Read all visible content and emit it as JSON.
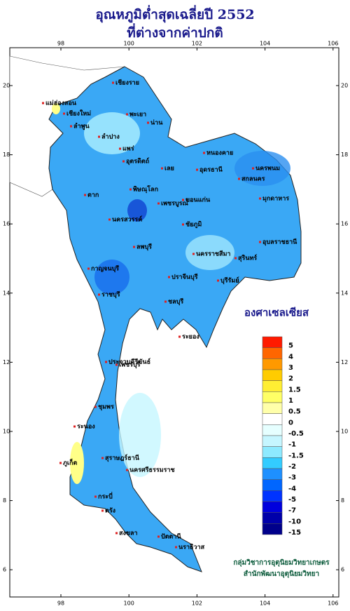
{
  "map": {
    "title": [
      "อุณหภูมิต่ำสุดเฉลี่ยปี  2552",
      "ที่ต่างจากค่าปกติ"
    ],
    "lon_ticks": [
      98,
      100,
      102,
      104,
      106
    ],
    "lat_ticks": [
      6,
      8,
      10,
      12,
      14,
      16,
      18,
      20
    ],
    "legend": {
      "title": "องศาเซลเซียส",
      "labels": [
        "5",
        "4",
        "3",
        "2",
        "1.5",
        "1",
        "0.5",
        "0",
        "-0.5",
        "-1",
        "-1.5",
        "-2",
        "-3",
        "-4",
        "-5",
        "-7",
        "-10",
        "-15"
      ],
      "colors": [
        "#ff1a00",
        "#ff6600",
        "#ff9900",
        "#ffcc00",
        "#ffee33",
        "#ffff66",
        "#ffffaa",
        "#ffffff",
        "#e6ffff",
        "#c6f6ff",
        "#8eeaff",
        "#33ccff",
        "#1e90ff",
        "#0066ff",
        "#0033ff",
        "#0000dd",
        "#0000aa",
        "#00008b"
      ]
    },
    "places": [
      "เชียงราย",
      "แม่ฮ่องสอน",
      "เชียงใหม่",
      "ลำพูน",
      "ลำปาง",
      "พะเยา",
      "น่าน",
      "แพร่",
      "อุตรดิตถ์",
      "ตาก",
      "พิษณุโลก",
      "เพชรบูรณ์",
      "หนองคาย",
      "อุดรธานี",
      "นครพนม",
      "สกลนคร",
      "มุกดาหาร",
      "เลย",
      "ขอนแก่น",
      "ชัยภูมิ",
      "นครราชสีมา",
      "บุรีรัมย์",
      "สุรินทร์",
      "อุบลราชธานี",
      "นครสวรรค์",
      "ลพบุรี",
      "กาญจนบุรี",
      "ราชบุรี",
      "ชลบุรี",
      "ระยอง",
      "ปราจีนบุรี",
      "เพชรบุรี",
      "ประจวบคีรีขันธ์",
      "ชุมพร",
      "ระนอง",
      "สุราษฎร์ธานี",
      "นครศรีธรรมราช",
      "ภูเก็ต",
      "กระบี่",
      "ตรัง",
      "สงขลา",
      "ปัตตานี",
      "นราธิวาส"
    ],
    "credits": [
      "กลุ่มวิชาการอุตุนิยมวิทยาเกษตร",
      "สำนักพัฒนาอุตุนิยมวิทยา"
    ]
  }
}
